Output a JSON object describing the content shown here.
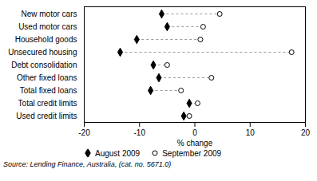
{
  "chart_data": {
    "type": "dumbbell",
    "categories": [
      "New motor cars",
      "Used motor cars",
      "Household goods",
      "Unsecured housing",
      "Debt consolidation",
      "Other fixed loans",
      "Total fixed loans",
      "Total credit limits",
      "Used credit limits"
    ],
    "series": [
      {
        "name": "August 2009",
        "color": "#000000",
        "marker": "diamond",
        "values": [
          -6.0,
          -5.0,
          -10.5,
          -13.5,
          -7.5,
          -6.5,
          -8.0,
          -1.0,
          -2.0
        ]
      },
      {
        "name": "September 2009",
        "color": "#000000",
        "marker": "circle",
        "values": [
          4.5,
          1.5,
          1.0,
          17.5,
          -5.0,
          3.0,
          -2.5,
          0.5,
          -1.0
        ]
      }
    ],
    "color": "#999999",
    "line_style": "dashed",
    "xlabel": "% change",
    "xlim": [
      -20,
      20
    ],
    "xticks": [
      -20,
      -10,
      0,
      10,
      20
    ],
    "legend": "lower left",
    "grid": false,
    "caption": "Source: Lending Finance, Australia, (cat. no. 5671.0)"
  }
}
